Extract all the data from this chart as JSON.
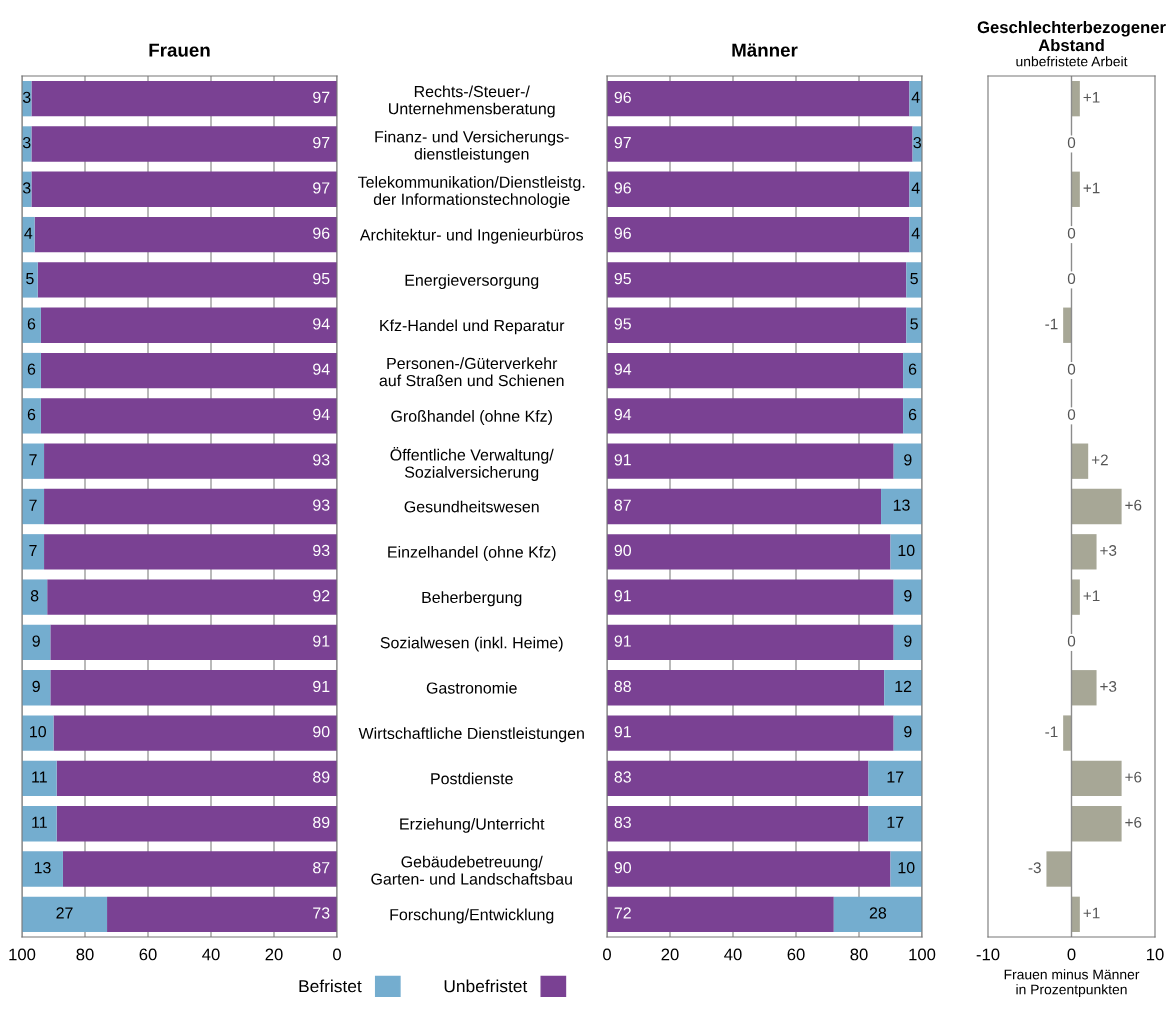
{
  "chart_data": [
    {
      "type": "bar",
      "orientation": "horizontal",
      "stacked": true,
      "title": "Frauen",
      "categories": [
        "Rechts-/Steuer-/\nUnternehmensberatung",
        "Finanz- und Versicherungs-\ndienstleistungen",
        "Telekommunikation/Dienstleistg.\nder Informationstechnologie",
        "Architektur- und Ingenieurbüros",
        "Energieversorgung",
        "Kfz-Handel und Reparatur",
        "Personen-/Güterverkehr\nauf Straßen und Schienen",
        "Großhandel (ohne Kfz)",
        "Öffentliche Verwaltung/\nSozialversicherung",
        "Gesundheitswesen",
        "Einzelhandel (ohne Kfz)",
        "Beherbergung",
        "Sozialwesen (inkl. Heime)",
        "Gastronomie",
        "Wirtschaftliche Dienstleistungen",
        "Postdienste",
        "Erziehung/Unterricht",
        "Gebäudebetreuung/\nGarten- und Landschaftsbau",
        "Forschung/Entwicklung"
      ],
      "series": [
        {
          "name": "Unbefristet",
          "color": "#7a4193",
          "values": [
            97,
            97,
            97,
            96,
            95,
            94,
            94,
            94,
            93,
            93,
            93,
            92,
            91,
            91,
            90,
            89,
            89,
            87,
            73
          ]
        },
        {
          "name": "Befristet",
          "color": "#74adcf",
          "values": [
            3,
            3,
            3,
            4,
            5,
            6,
            6,
            6,
            7,
            7,
            7,
            8,
            9,
            9,
            10,
            11,
            11,
            13,
            27
          ]
        }
      ],
      "xlim": [
        100,
        0
      ],
      "xticks": [
        100,
        80,
        60,
        40,
        20,
        0
      ],
      "grid": "x",
      "data_labels": true,
      "legend": "bottom"
    },
    {
      "type": "bar",
      "orientation": "horizontal",
      "stacked": true,
      "title": "Männer",
      "categories": [
        null,
        null,
        null,
        null,
        null,
        null,
        null,
        null,
        null,
        null,
        null,
        null,
        null,
        null,
        null,
        null,
        null,
        null,
        null
      ],
      "series": [
        {
          "color": "#7a4193",
          "values": [
            96,
            97,
            96,
            96,
            95,
            95,
            94,
            94,
            91,
            87,
            90,
            91,
            91,
            88,
            91,
            83,
            83,
            90,
            72
          ]
        },
        {
          "color": "#74adcf",
          "values": [
            4,
            3,
            4,
            4,
            5,
            5,
            6,
            6,
            9,
            13,
            10,
            9,
            9,
            12,
            9,
            17,
            17,
            10,
            28
          ]
        }
      ],
      "xlim": [
        0,
        100
      ],
      "xticks": [
        0,
        20,
        40,
        60,
        80,
        100
      ],
      "grid": "x",
      "data_labels": true,
      "tick_labels": "x"
    },
    {
      "type": "bar",
      "orientation": "horizontal",
      "title": "Geschlechterbezogener\nAbstand",
      "subtitle": "unbefristete Arbeit",
      "xlabel": "Frauen minus Männer\nin Prozentpunkten",
      "categories": [
        null,
        null,
        null,
        null,
        null,
        null,
        null,
        null,
        null,
        null,
        null,
        null,
        null,
        null,
        null,
        null,
        null,
        null,
        null
      ],
      "values": [
        1,
        0,
        1,
        0,
        0,
        -1,
        0,
        0,
        2,
        6,
        3,
        1,
        0,
        3,
        -1,
        6,
        6,
        -3,
        1
      ],
      "value_labels": [
        "+1",
        "0",
        "+1",
        "0",
        "0",
        "-1",
        "0",
        "0",
        "+2",
        "+6",
        "+3",
        "+1",
        "0",
        "+3",
        "-1",
        "+6",
        "+6",
        "-3",
        "+1"
      ],
      "color": "#a7a796",
      "xlim": [
        -10,
        10
      ],
      "xticks": [
        -10,
        0,
        10
      ],
      "tick_labels": "x",
      "ref_lines": [
        {
          "axis": "x",
          "value": 0,
          "label": null,
          "color": "#8c8c8c"
        }
      ]
    }
  ]
}
